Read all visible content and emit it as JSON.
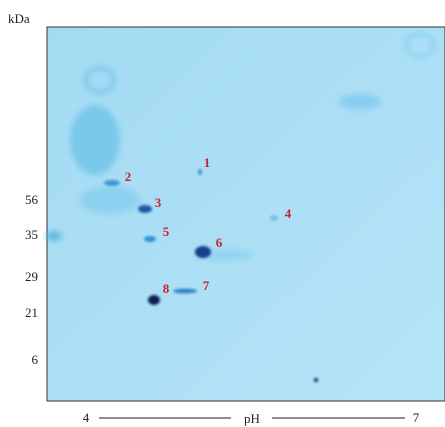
{
  "y_axis": {
    "unit": "kDa",
    "markers": [
      56,
      35,
      29,
      21,
      6
    ]
  },
  "x_axis": {
    "start": 4,
    "label": "pH",
    "end": 7
  },
  "spots": [
    1,
    2,
    3,
    4,
    5,
    6,
    7,
    8
  ]
}
